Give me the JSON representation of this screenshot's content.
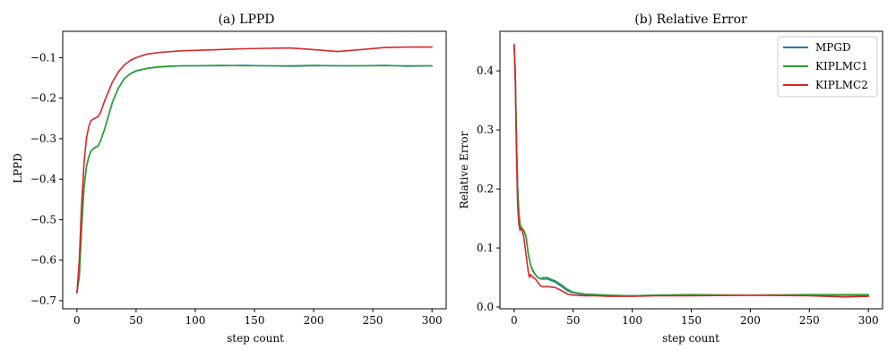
{
  "chart_data": [
    {
      "type": "line",
      "title": "(a) LPPD",
      "xlabel": "step count",
      "ylabel": "LPPD",
      "xlim": [
        -12,
        312
      ],
      "ylim": [
        -0.72,
        -0.035
      ],
      "xticks": [
        0,
        50,
        100,
        150,
        200,
        250,
        300
      ],
      "xtick_labels": [
        "0",
        "50",
        "100",
        "150",
        "200",
        "250",
        "300"
      ],
      "yticks": [
        -0.7,
        -0.6,
        -0.5,
        -0.4,
        -0.3,
        -0.2,
        -0.1
      ],
      "ytick_labels": [
        "−0.7",
        "−0.6",
        "−0.5",
        "−0.4",
        "−0.3",
        "−0.2",
        "−0.1"
      ],
      "grid": false,
      "series": [
        {
          "name": "MPGD",
          "color": "#1f77b4",
          "x": [
            0,
            2,
            4,
            6,
            8,
            10,
            12,
            15,
            18,
            20,
            23,
            25,
            30,
            35,
            40,
            45,
            50,
            60,
            70,
            80,
            90,
            100,
            120,
            140,
            160,
            180,
            200,
            220,
            240,
            260,
            280,
            300
          ],
          "y": [
            -0.68,
            -0.64,
            -0.52,
            -0.42,
            -0.37,
            -0.345,
            -0.33,
            -0.322,
            -0.318,
            -0.305,
            -0.28,
            -0.26,
            -0.21,
            -0.175,
            -0.152,
            -0.14,
            -0.133,
            -0.126,
            -0.123,
            -0.121,
            -0.12,
            -0.12,
            -0.12,
            -0.119,
            -0.12,
            -0.121,
            -0.12,
            -0.12,
            -0.12,
            -0.119,
            -0.121,
            -0.12
          ]
        },
        {
          "name": "KIPLMC1",
          "color": "#2ca02c",
          "x": [
            0,
            2,
            4,
            6,
            8,
            10,
            12,
            15,
            18,
            20,
            23,
            25,
            30,
            35,
            40,
            45,
            50,
            60,
            70,
            80,
            90,
            100,
            120,
            140,
            160,
            180,
            200,
            220,
            240,
            260,
            280,
            300
          ],
          "y": [
            -0.68,
            -0.64,
            -0.52,
            -0.42,
            -0.37,
            -0.345,
            -0.33,
            -0.323,
            -0.318,
            -0.305,
            -0.28,
            -0.26,
            -0.21,
            -0.175,
            -0.152,
            -0.14,
            -0.132,
            -0.126,
            -0.122,
            -0.121,
            -0.12,
            -0.12,
            -0.119,
            -0.12,
            -0.12,
            -0.12,
            -0.119,
            -0.12,
            -0.12,
            -0.12,
            -0.12,
            -0.12
          ]
        },
        {
          "name": "KIPLMC2",
          "color": "#d62728",
          "x": [
            0,
            2,
            4,
            6,
            8,
            10,
            12,
            15,
            18,
            20,
            23,
            25,
            30,
            35,
            40,
            45,
            50,
            55,
            60,
            70,
            80,
            90,
            100,
            120,
            140,
            160,
            180,
            200,
            220,
            240,
            260,
            280,
            300
          ],
          "y": [
            -0.68,
            -0.6,
            -0.46,
            -0.36,
            -0.3,
            -0.27,
            -0.255,
            -0.25,
            -0.245,
            -0.235,
            -0.21,
            -0.195,
            -0.16,
            -0.135,
            -0.118,
            -0.107,
            -0.1,
            -0.095,
            -0.091,
            -0.087,
            -0.085,
            -0.083,
            -0.082,
            -0.08,
            -0.078,
            -0.077,
            -0.076,
            -0.08,
            -0.085,
            -0.08,
            -0.075,
            -0.074,
            -0.074
          ]
        }
      ]
    },
    {
      "type": "line",
      "title": "(b) Relative Error",
      "xlabel": "step count",
      "ylabel": "Relative Error",
      "xlim": [
        -12,
        312
      ],
      "ylim": [
        -0.003,
        0.467
      ],
      "xticks": [
        0,
        50,
        100,
        150,
        200,
        250,
        300
      ],
      "xtick_labels": [
        "0",
        "50",
        "100",
        "150",
        "200",
        "250",
        "300"
      ],
      "yticks": [
        0.0,
        0.1,
        0.2,
        0.3,
        0.4
      ],
      "ytick_labels": [
        "0.0",
        "0.1",
        "0.2",
        "0.3",
        "0.4"
      ],
      "grid": false,
      "legend": {
        "placement": "top-right",
        "entries": [
          "MPGD",
          "KIPLMC1",
          "KIPLMC2"
        ]
      },
      "series": [
        {
          "name": "MPGD",
          "color": "#1f77b4",
          "x": [
            0,
            1,
            2,
            3,
            4,
            5,
            6,
            8,
            10,
            12,
            14,
            16,
            18,
            20,
            22,
            25,
            28,
            30,
            35,
            40,
            45,
            50,
            60,
            70,
            80,
            100,
            120,
            150,
            200,
            250,
            300
          ],
          "y": [
            0.445,
            0.4,
            0.28,
            0.2,
            0.16,
            0.14,
            0.135,
            0.13,
            0.12,
            0.09,
            0.07,
            0.06,
            0.055,
            0.05,
            0.048,
            0.047,
            0.048,
            0.046,
            0.042,
            0.035,
            0.028,
            0.024,
            0.021,
            0.02,
            0.019,
            0.019,
            0.02,
            0.02,
            0.02,
            0.02,
            0.02
          ]
        },
        {
          "name": "KIPLMC1",
          "color": "#2ca02c",
          "x": [
            0,
            1,
            2,
            3,
            4,
            5,
            6,
            8,
            10,
            12,
            14,
            16,
            18,
            20,
            22,
            25,
            28,
            30,
            35,
            40,
            45,
            50,
            60,
            70,
            80,
            100,
            120,
            150,
            200,
            250,
            300
          ],
          "y": [
            0.445,
            0.4,
            0.28,
            0.2,
            0.16,
            0.14,
            0.135,
            0.13,
            0.12,
            0.09,
            0.07,
            0.062,
            0.055,
            0.05,
            0.048,
            0.05,
            0.05,
            0.048,
            0.044,
            0.038,
            0.03,
            0.025,
            0.022,
            0.021,
            0.02,
            0.019,
            0.02,
            0.021,
            0.02,
            0.021,
            0.021
          ]
        },
        {
          "name": "KIPLMC2",
          "color": "#d62728",
          "x": [
            0,
            1,
            2,
            3,
            4,
            5,
            6,
            8,
            10,
            12,
            13,
            14,
            16,
            18,
            20,
            22,
            25,
            28,
            30,
            35,
            40,
            45,
            50,
            60,
            70,
            80,
            100,
            120,
            150,
            200,
            250,
            280,
            300
          ],
          "y": [
            0.445,
            0.38,
            0.25,
            0.17,
            0.14,
            0.13,
            0.135,
            0.12,
            0.09,
            0.06,
            0.05,
            0.055,
            0.05,
            0.048,
            0.042,
            0.036,
            0.034,
            0.035,
            0.034,
            0.033,
            0.028,
            0.022,
            0.02,
            0.019,
            0.019,
            0.018,
            0.018,
            0.019,
            0.019,
            0.02,
            0.019,
            0.017,
            0.018
          ]
        }
      ]
    }
  ]
}
